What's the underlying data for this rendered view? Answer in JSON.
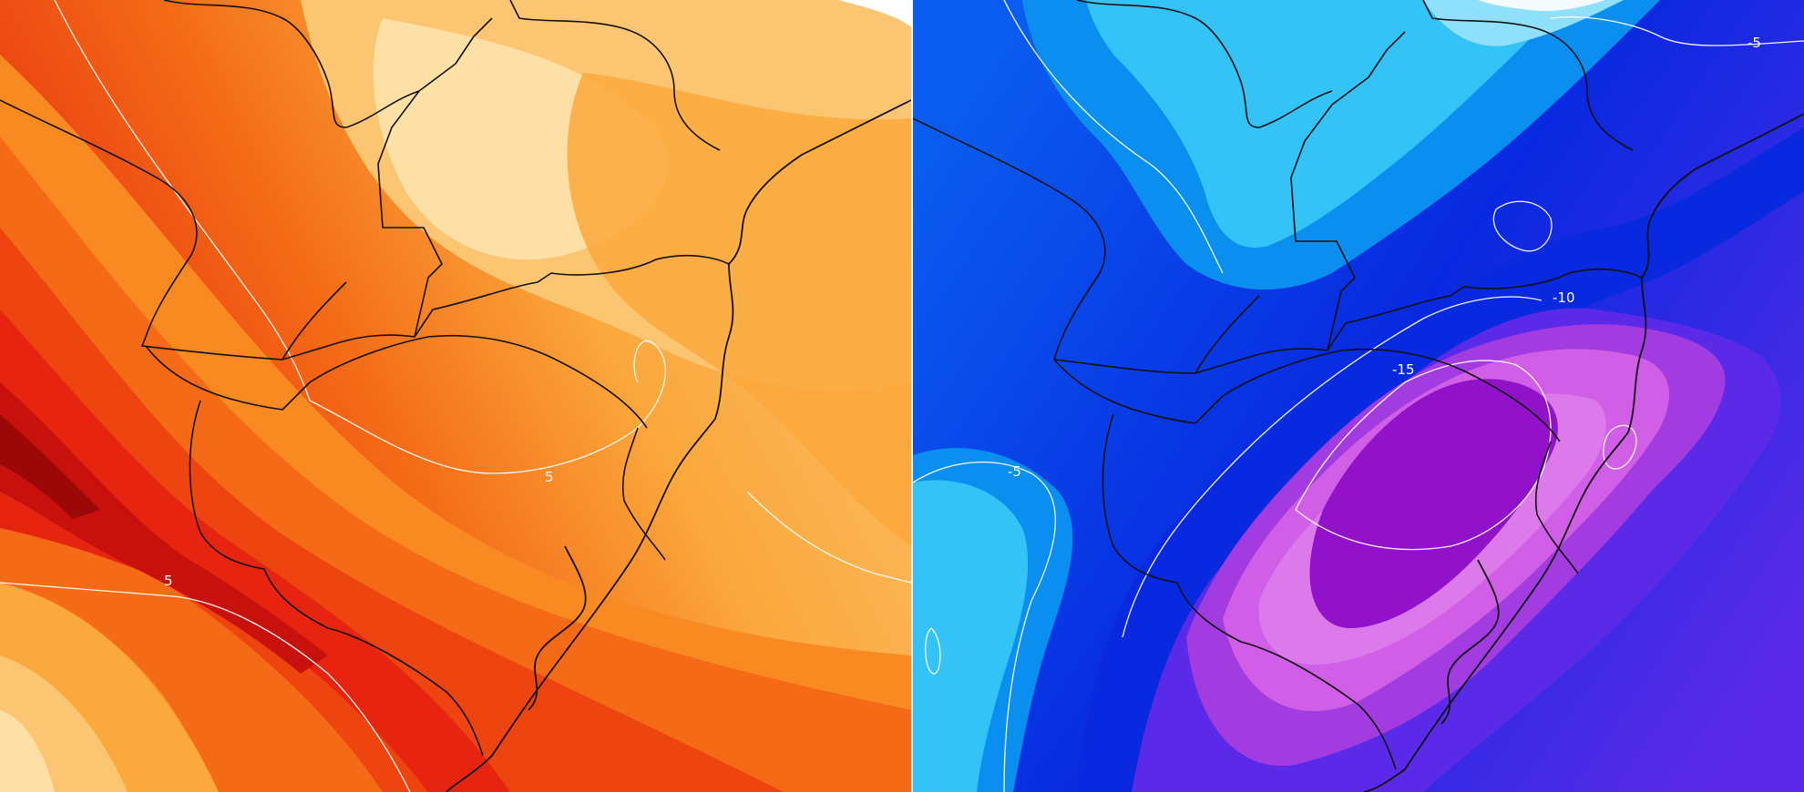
{
  "panels": [
    {
      "id": "warm-anomaly",
      "palette": [
        "#fde0a6",
        "#fcc572",
        "#fba83c",
        "#f98a22",
        "#f46a16",
        "#ee4410",
        "#e62410",
        "#c8100c",
        "#9c0808"
      ],
      "contour_labels": [
        "5",
        "5"
      ]
    },
    {
      "id": "cold-anomaly",
      "palette": [
        "#f4fbff",
        "#8fe0fb",
        "#33c3f6",
        "#0a8ff0",
        "#0a5df0",
        "#0829e0",
        "#5a2ae8",
        "#a23be0",
        "#d05ee6",
        "#e592ee",
        "#9112c8"
      ],
      "contour_labels": [
        "-5",
        "-5",
        "-10",
        "-15"
      ]
    }
  ]
}
